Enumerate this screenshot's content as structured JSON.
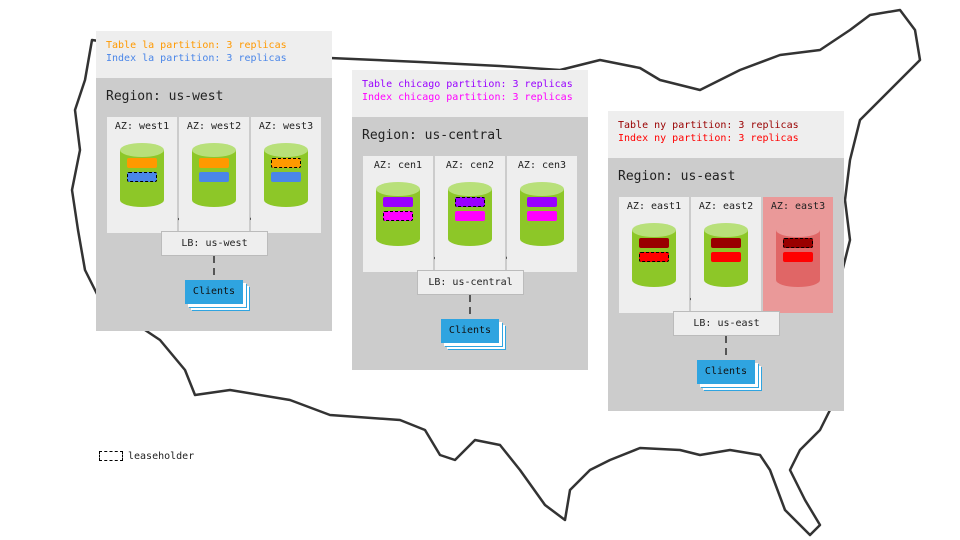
{
  "colors": {
    "cylinder": "#8dc728",
    "cylinder_top": "#b8e07a",
    "cylinder_down": "#e06666",
    "cylinder_down_top": "#ea9999",
    "clients": "#2fa4e0"
  },
  "regions": [
    {
      "title": "Region: us-west",
      "lines": [
        {
          "text": "Table la partition: 3 replicas",
          "color": "#ff9900"
        },
        {
          "text": "Index la partition: 3 replicas",
          "color": "#4a86e8"
        }
      ],
      "table_color": "#ff9900",
      "index_color": "#4a86e8",
      "azs": [
        {
          "label": "AZ: west1",
          "leaseholder": "index",
          "down": false
        },
        {
          "label": "AZ: west2",
          "leaseholder": "none",
          "down": false
        },
        {
          "label": "AZ: west3",
          "leaseholder": "table",
          "down": false
        }
      ],
      "lb": "LB: us-west",
      "clients": "Clients"
    },
    {
      "title": "Region: us-central",
      "lines": [
        {
          "text": "Table chicago partition: 3 replicas",
          "color": "#9900ff"
        },
        {
          "text": "Index chicago partition: 3 replicas",
          "color": "#ff00ff"
        }
      ],
      "table_color": "#9900ff",
      "index_color": "#ff00ff",
      "azs": [
        {
          "label": "AZ: cen1",
          "leaseholder": "index",
          "down": false
        },
        {
          "label": "AZ: cen2",
          "leaseholder": "table",
          "down": false
        },
        {
          "label": "AZ: cen3",
          "leaseholder": "none",
          "down": false
        }
      ],
      "lb": "LB: us-central",
      "clients": "Clients"
    },
    {
      "title": "Region: us-east",
      "lines": [
        {
          "text": "Table ny partition: 3 replicas",
          "color": "#990000"
        },
        {
          "text": "Index ny partition: 3 replicas",
          "color": "#ff0000"
        }
      ],
      "table_color": "#990000",
      "index_color": "#ff0000",
      "azs": [
        {
          "label": "AZ: east1",
          "leaseholder": "index",
          "down": false
        },
        {
          "label": "AZ: east2",
          "leaseholder": "none",
          "down": false
        },
        {
          "label": "AZ: east3",
          "leaseholder": "table",
          "down": true
        }
      ],
      "lb": "LB: us-east",
      "clients": "Clients"
    }
  ],
  "legend": {
    "label": "leaseholder"
  }
}
